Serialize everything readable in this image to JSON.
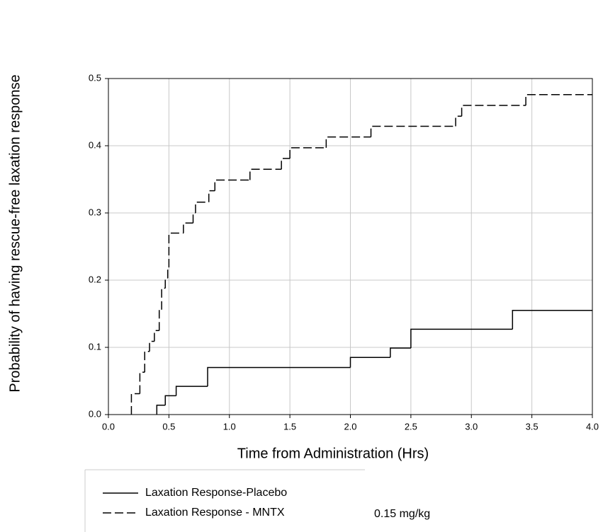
{
  "chart_data": {
    "type": "step",
    "x_label": "Time from Administration (Hrs)",
    "y_label": "Probability of having rescue-free laxation response",
    "xlim": [
      0,
      4
    ],
    "ylim": [
      0,
      0.5
    ],
    "xticks": [
      {
        "value": 0,
        "label": "0.0"
      },
      {
        "value": 0.5,
        "label": "0.5"
      },
      {
        "value": 1,
        "label": "1.0"
      },
      {
        "value": 1.5,
        "label": "1.5"
      },
      {
        "value": 2,
        "label": "2.0"
      },
      {
        "value": 2.5,
        "label": "2.5"
      },
      {
        "value": 3,
        "label": "3.0"
      },
      {
        "value": 3.5,
        "label": "3.5"
      },
      {
        "value": 4,
        "label": "4.0"
      }
    ],
    "yticks": [
      {
        "value": 0,
        "label": "0.0"
      },
      {
        "value": 0.1,
        "label": "0.1"
      },
      {
        "value": 0.2,
        "label": "0.2"
      },
      {
        "value": 0.3,
        "label": "0.3"
      },
      {
        "value": 0.4,
        "label": "0.4"
      },
      {
        "value": 0.5,
        "label": "0.5"
      }
    ],
    "grid": true,
    "annotation": "0.15 mg/kg",
    "series": [
      {
        "name": "Laxation Response-Placebo",
        "color": "#000000",
        "dash": "solid",
        "x": [
          0.4,
          0.47,
          0.56,
          0.82,
          2.0,
          2.33,
          2.5,
          3.34
        ],
        "values": [
          0.014,
          0.028,
          0.042,
          0.07,
          0.085,
          0.099,
          0.127,
          0.155
        ]
      },
      {
        "name": "Laxation Response - MNTX",
        "color": "#000000",
        "dash": "dashed",
        "x": [
          0.19,
          0.26,
          0.3,
          0.34,
          0.38,
          0.42,
          0.44,
          0.47,
          0.49,
          0.5,
          0.62,
          0.7,
          0.72,
          0.83,
          0.88,
          1.17,
          1.43,
          1.5,
          1.8,
          2.17,
          2.87,
          2.92,
          3.45
        ],
        "values": [
          0.031,
          0.063,
          0.094,
          0.109,
          0.125,
          0.156,
          0.188,
          0.203,
          0.219,
          0.27,
          0.285,
          0.3,
          0.316,
          0.333,
          0.349,
          0.365,
          0.381,
          0.397,
          0.413,
          0.429,
          0.444,
          0.46,
          0.476
        ]
      }
    ]
  }
}
